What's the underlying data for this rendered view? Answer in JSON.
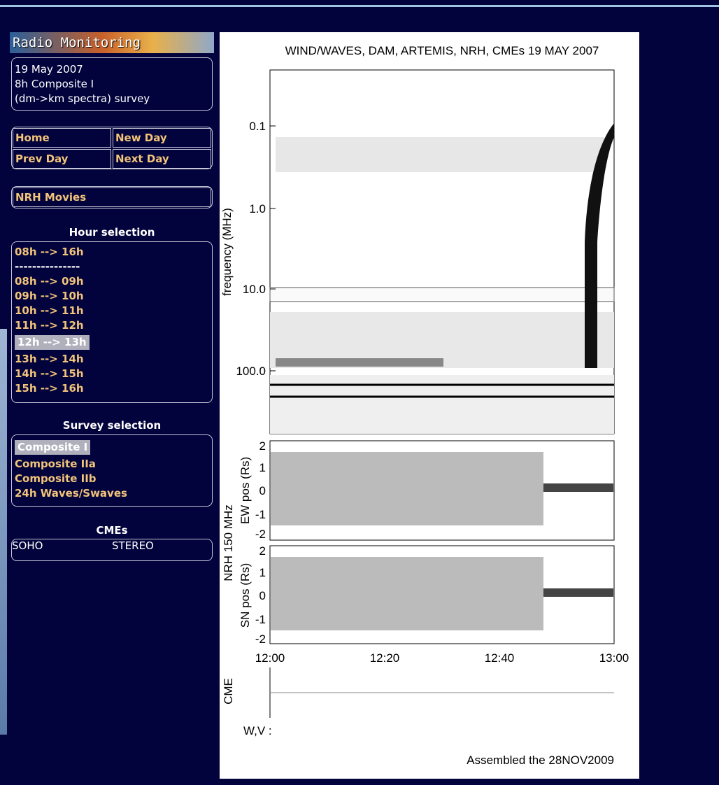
{
  "sidebar": {
    "logo": "Radio Monitoring",
    "info": [
      "19 May 2007",
      "8h Composite I",
      "(dm->km spectra) survey"
    ],
    "nav": [
      "Home",
      "New Day",
      "Prev Day",
      "Next Day"
    ],
    "movies": "NRH Movies",
    "hour_heading": "Hour selection",
    "hours": [
      "08h --> 16h",
      "---------------",
      "08h --> 09h",
      "09h --> 10h",
      "10h --> 11h",
      "11h --> 12h",
      "12h --> 13h",
      "13h --> 14h",
      "14h --> 15h",
      "15h --> 16h"
    ],
    "survey_heading": "Survey selection",
    "surveys": [
      "Composite I",
      "Composite IIa",
      "Composite IIb",
      "24h Waves/Swaves"
    ],
    "cme_heading": "CMEs",
    "cmes": [
      "SOHO",
      "STEREO"
    ]
  },
  "figure": {
    "title": "WIND/WAVES, DAM, ARTEMIS, NRH, CMEs   19 MAY 2007",
    "freq_label": "frequency (MHz)",
    "freq_ticks": [
      "0.1",
      "1.0",
      "10.0",
      "100.0"
    ],
    "nrh_label": "NRH 150 MHz",
    "ew_label": "EW pos (Rs)",
    "sn_label": "SN pos (Rs)",
    "pos_ticks": [
      "2",
      "1",
      "0",
      "-1",
      "-2"
    ],
    "time_ticks": [
      "12:00",
      "12:20",
      "12:40",
      "13:00"
    ],
    "cme_label": "CME",
    "wv_label": "W,V :",
    "footer": "Assembled the 28NOV2009"
  }
}
